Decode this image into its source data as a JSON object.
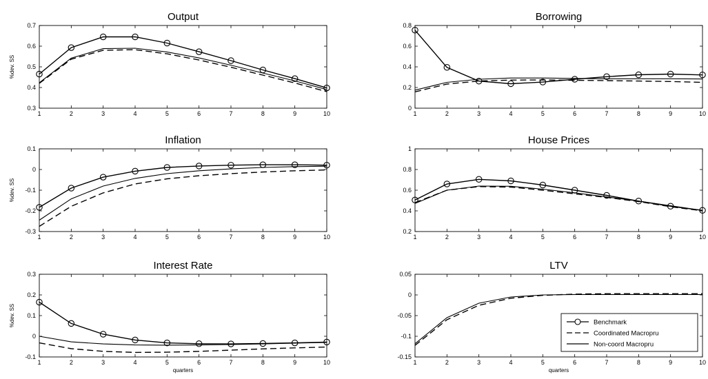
{
  "chart_data": [
    {
      "type": "line",
      "title": "Output",
      "ylabel": "%dev. SS",
      "xlabel": "",
      "x": [
        1,
        2,
        3,
        4,
        5,
        6,
        7,
        8,
        9,
        10
      ],
      "xlim": [
        1,
        10
      ],
      "ylim": [
        0.3,
        0.7
      ],
      "yticks": [
        "0.3",
        "0.4",
        "0.5",
        "0.6",
        "0.7"
      ],
      "xticks": [
        "1",
        "2",
        "3",
        "4",
        "5",
        "6",
        "7",
        "8",
        "9",
        "10"
      ],
      "series": [
        {
          "name": "Benchmark",
          "values": [
            0.465,
            0.593,
            0.645,
            0.645,
            0.615,
            0.573,
            0.53,
            0.485,
            0.443,
            0.398
          ]
        },
        {
          "name": "Coordinated Macropru",
          "values": [
            0.42,
            0.537,
            0.58,
            0.583,
            0.563,
            0.533,
            0.498,
            0.46,
            0.422,
            0.38
          ]
        },
        {
          "name": "Non-coord Macropru",
          "values": [
            0.423,
            0.542,
            0.588,
            0.59,
            0.572,
            0.543,
            0.508,
            0.47,
            0.432,
            0.39
          ]
        }
      ]
    },
    {
      "type": "line",
      "title": "Borrowing",
      "ylabel": "",
      "xlabel": "",
      "x": [
        1,
        2,
        3,
        4,
        5,
        6,
        7,
        8,
        9,
        10
      ],
      "xlim": [
        1,
        10
      ],
      "ylim": [
        0,
        0.8
      ],
      "yticks": [
        "0",
        "0.2",
        "0.4",
        "0.6",
        "0.8"
      ],
      "xticks": [
        "1",
        "2",
        "3",
        "4",
        "5",
        "6",
        "7",
        "8",
        "9",
        "10"
      ],
      "series": [
        {
          "name": "Benchmark",
          "values": [
            0.755,
            0.395,
            0.262,
            0.237,
            0.253,
            0.28,
            0.305,
            0.323,
            0.33,
            0.322
          ]
        },
        {
          "name": "Coordinated Macropru",
          "values": [
            0.158,
            0.233,
            0.263,
            0.272,
            0.273,
            0.27,
            0.267,
            0.263,
            0.258,
            0.25
          ]
        },
        {
          "name": "Non-coord Macropru",
          "values": [
            0.175,
            0.25,
            0.28,
            0.292,
            0.292,
            0.288,
            0.285,
            0.285,
            0.285,
            0.283
          ]
        }
      ]
    },
    {
      "type": "line",
      "title": "Inflation",
      "ylabel": "%dev. SS",
      "xlabel": "",
      "x": [
        1,
        2,
        3,
        4,
        5,
        6,
        7,
        8,
        9,
        10
      ],
      "xlim": [
        1,
        10
      ],
      "ylim": [
        -0.3,
        0.1
      ],
      "yticks": [
        "-0.3",
        "-0.2",
        "-0.1",
        "0",
        "0.1"
      ],
      "xticks": [
        "1",
        "2",
        "3",
        "4",
        "5",
        "6",
        "7",
        "8",
        "9",
        "10"
      ],
      "series": [
        {
          "name": "Benchmark",
          "values": [
            -0.183,
            -0.09,
            -0.037,
            -0.008,
            0.01,
            0.017,
            0.021,
            0.023,
            0.023,
            0.021
          ]
        },
        {
          "name": "Coordinated Macropru",
          "values": [
            -0.275,
            -0.178,
            -0.113,
            -0.07,
            -0.045,
            -0.03,
            -0.02,
            -0.012,
            -0.006,
            -0.002
          ]
        },
        {
          "name": "Non-coord Macropru",
          "values": [
            -0.245,
            -0.142,
            -0.08,
            -0.043,
            -0.02,
            -0.006,
            0.003,
            0.01,
            0.014,
            0.016
          ]
        }
      ]
    },
    {
      "type": "line",
      "title": "House Prices",
      "ylabel": "",
      "xlabel": "",
      "x": [
        1,
        2,
        3,
        4,
        5,
        6,
        7,
        8,
        9,
        10
      ],
      "xlim": [
        1,
        10
      ],
      "ylim": [
        0.2,
        1
      ],
      "yticks": [
        "0.2",
        "0.4",
        "0.6",
        "0.8",
        "1"
      ],
      "xticks": [
        "1",
        "2",
        "3",
        "4",
        "5",
        "6",
        "7",
        "8",
        "9",
        "10"
      ],
      "series": [
        {
          "name": "Benchmark",
          "values": [
            0.505,
            0.66,
            0.705,
            0.69,
            0.65,
            0.6,
            0.55,
            0.495,
            0.445,
            0.405
          ]
        },
        {
          "name": "Coordinated Macropru",
          "values": [
            0.48,
            0.6,
            0.635,
            0.63,
            0.6,
            0.565,
            0.53,
            0.49,
            0.44,
            0.4
          ]
        },
        {
          "name": "Non-coord Macropru",
          "values": [
            0.472,
            0.6,
            0.64,
            0.638,
            0.61,
            0.575,
            0.535,
            0.495,
            0.45,
            0.405
          ]
        }
      ]
    },
    {
      "type": "line",
      "title": "Interest Rate",
      "ylabel": "%dev. SS",
      "xlabel": "quarters",
      "x": [
        1,
        2,
        3,
        4,
        5,
        6,
        7,
        8,
        9,
        10
      ],
      "xlim": [
        1,
        10
      ],
      "ylim": [
        -0.1,
        0.3
      ],
      "yticks": [
        "-0.1",
        "0",
        "0.1",
        "0.2",
        "0.3"
      ],
      "xticks": [
        "1",
        "2",
        "3",
        "4",
        "5",
        "6",
        "7",
        "8",
        "9",
        "10"
      ],
      "series": [
        {
          "name": "Benchmark",
          "values": [
            0.165,
            0.062,
            0.01,
            -0.018,
            -0.032,
            -0.036,
            -0.037,
            -0.035,
            -0.032,
            -0.028
          ]
        },
        {
          "name": "Coordinated Macropru",
          "values": [
            -0.032,
            -0.06,
            -0.073,
            -0.078,
            -0.077,
            -0.073,
            -0.067,
            -0.061,
            -0.056,
            -0.052
          ]
        },
        {
          "name": "Non-coord Macropru",
          "values": [
            0,
            -0.027,
            -0.037,
            -0.042,
            -0.043,
            -0.042,
            -0.04,
            -0.037,
            -0.033,
            -0.03
          ]
        }
      ]
    },
    {
      "type": "line",
      "title": "LTV",
      "ylabel": "",
      "xlabel": "quarters",
      "x": [
        1,
        2,
        3,
        4,
        5,
        6,
        7,
        8,
        9,
        10
      ],
      "xlim": [
        1,
        10
      ],
      "ylim": [
        -0.15,
        0.05
      ],
      "yticks": [
        "-0.15",
        "-0.1",
        "-0.05",
        "0",
        "0.05"
      ],
      "xticks": [
        "1",
        "2",
        "3",
        "4",
        "5",
        "6",
        "7",
        "8",
        "9",
        "10"
      ],
      "series": [
        {
          "name": "Coordinated Macropru",
          "values": [
            -0.122,
            -0.06,
            -0.025,
            -0.008,
            -0.001,
            0.002,
            0.003,
            0.003,
            0.003,
            0.003
          ]
        },
        {
          "name": "Non-coord Macropru",
          "values": [
            -0.118,
            -0.055,
            -0.02,
            -0.005,
            0,
            0.001,
            0.001,
            0.001,
            0.001,
            0.001
          ]
        }
      ],
      "legend": {
        "placement": "bottom-right",
        "entries": [
          {
            "label": "Benchmark",
            "style": "solid-circle"
          },
          {
            "label": "Coordinated Macropru",
            "style": "dashed"
          },
          {
            "label": "Non-coord Macropru",
            "style": "solid"
          }
        ]
      }
    }
  ]
}
